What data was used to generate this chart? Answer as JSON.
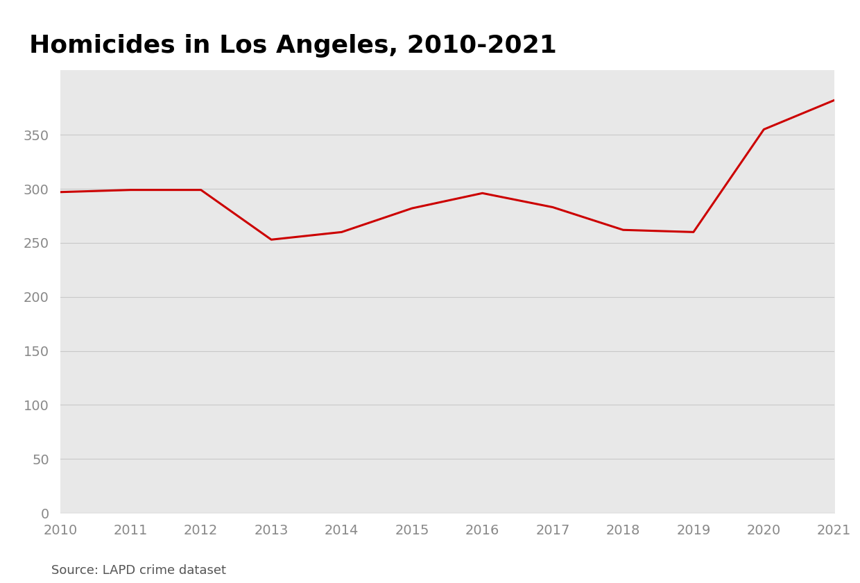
{
  "title": "Homicides in Los Angeles, 2010-2021",
  "years": [
    2010,
    2011,
    2012,
    2013,
    2014,
    2015,
    2016,
    2017,
    2018,
    2019,
    2020,
    2021
  ],
  "values": [
    297,
    299,
    299,
    253,
    260,
    282,
    296,
    283,
    262,
    260,
    355,
    382
  ],
  "line_color": "#cc0000",
  "fill_color": "#e8e8e8",
  "figure_bg_color": "#ffffff",
  "plot_bg_color": "#e8e8e8",
  "title_fontsize": 26,
  "source_text": "Source: LAPD crime dataset",
  "source_fontsize": 13,
  "ylabel_ticks": [
    0,
    50,
    100,
    150,
    200,
    250,
    300,
    350
  ],
  "ylim": [
    0,
    410
  ],
  "xlim": [
    2010,
    2021
  ],
  "grid_color": "#c8c8c8",
  "tick_color": "#888888",
  "tick_fontsize": 14
}
